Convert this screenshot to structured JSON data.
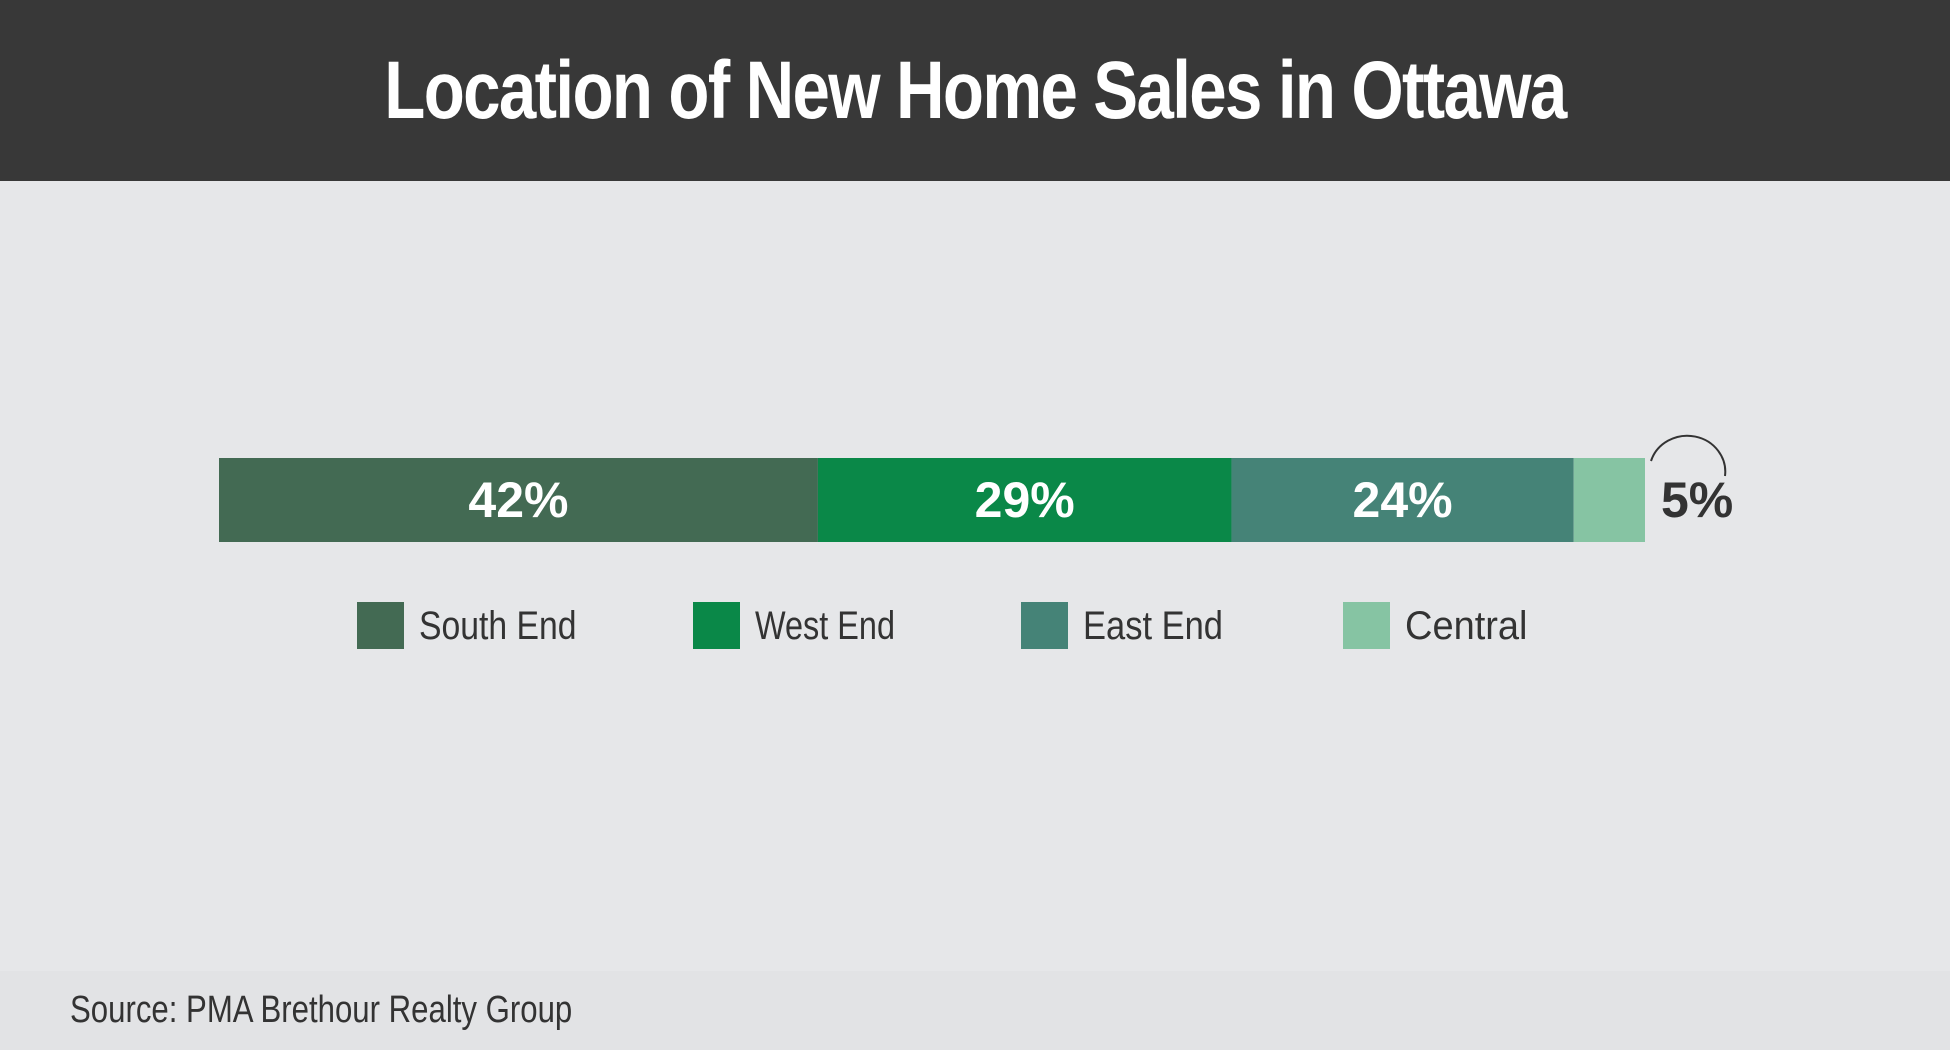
{
  "title": "Location of New Home Sales in Ottawa",
  "source": "Source: PMA Brethour Realty Group",
  "chart_data": {
    "type": "bar",
    "orientation": "horizontal-stacked",
    "unit": "%",
    "categories": [
      "South End",
      "West End",
      "East End",
      "Central"
    ],
    "values": [
      42,
      29,
      24,
      5
    ],
    "labels": [
      "42%",
      "29%",
      "24%",
      "5%"
    ],
    "colors": [
      "#436a53",
      "#0a8848",
      "#458377",
      "#86c4a3"
    ],
    "legend_position": "bottom-center",
    "grid": false,
    "xlim": [
      0,
      100
    ]
  }
}
